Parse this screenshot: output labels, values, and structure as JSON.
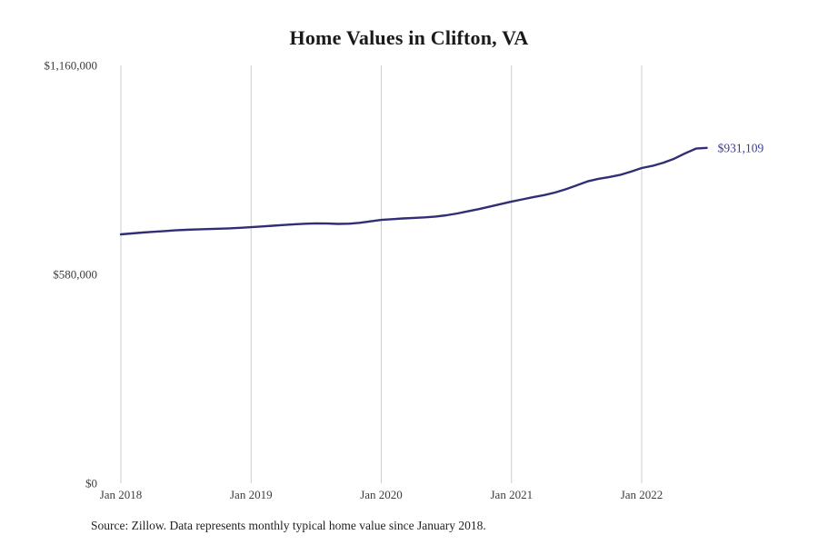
{
  "chart_data": {
    "type": "line",
    "title": "Home Values in Clifton, VA",
    "source": "Source: Zillow. Data represents monthly typical home value since January 2018.",
    "end_label": "$931,109",
    "end_value": 931109,
    "xlabel": "",
    "ylabel": "",
    "ylim": [
      0,
      1160000
    ],
    "grid": "vertical-only",
    "y_ticks": [
      {
        "value": 0,
        "label": "$0"
      },
      {
        "value": 580000,
        "label": "$580,000"
      },
      {
        "value": 1160000,
        "label": "$1,160,000"
      }
    ],
    "x_ticks": [
      {
        "index": 0,
        "label": "Jan 2018"
      },
      {
        "index": 12,
        "label": "Jan 2019"
      },
      {
        "index": 24,
        "label": "Jan 2020"
      },
      {
        "index": 36,
        "label": "Jan 2021"
      },
      {
        "index": 48,
        "label": "Jan 2022"
      }
    ],
    "x": [
      "2018-01",
      "2018-02",
      "2018-03",
      "2018-04",
      "2018-05",
      "2018-06",
      "2018-07",
      "2018-08",
      "2018-09",
      "2018-10",
      "2018-11",
      "2018-12",
      "2019-01",
      "2019-02",
      "2019-03",
      "2019-04",
      "2019-05",
      "2019-06",
      "2019-07",
      "2019-08",
      "2019-09",
      "2019-10",
      "2019-11",
      "2019-12",
      "2020-01",
      "2020-02",
      "2020-03",
      "2020-04",
      "2020-05",
      "2020-06",
      "2020-07",
      "2020-08",
      "2020-09",
      "2020-10",
      "2020-11",
      "2020-12",
      "2021-01",
      "2021-02",
      "2021-03",
      "2021-04",
      "2021-05",
      "2021-06",
      "2021-07",
      "2021-08",
      "2021-09",
      "2021-10",
      "2021-11",
      "2021-12",
      "2022-01",
      "2022-02",
      "2022-03",
      "2022-04",
      "2022-05",
      "2022-06",
      "2022-07"
    ],
    "values": [
      691000,
      693500,
      696000,
      698000,
      700000,
      702000,
      703500,
      704500,
      705500,
      706500,
      707500,
      709000,
      711000,
      713000,
      715000,
      717000,
      719000,
      720500,
      721500,
      721000,
      720000,
      720500,
      723000,
      727000,
      731000,
      733000,
      735000,
      736500,
      738000,
      740500,
      744000,
      749000,
      755000,
      761000,
      768000,
      775000,
      782000,
      788000,
      794000,
      800000,
      807000,
      816000,
      827000,
      838000,
      845000,
      850000,
      856000,
      865000,
      875000,
      881000,
      890000,
      901000,
      916000,
      929000,
      931109
    ],
    "colors": {
      "line": "#312e75",
      "grid": "#cccccc",
      "tick_text": "#3d3d3d",
      "end_label": "#3c3a94"
    }
  }
}
